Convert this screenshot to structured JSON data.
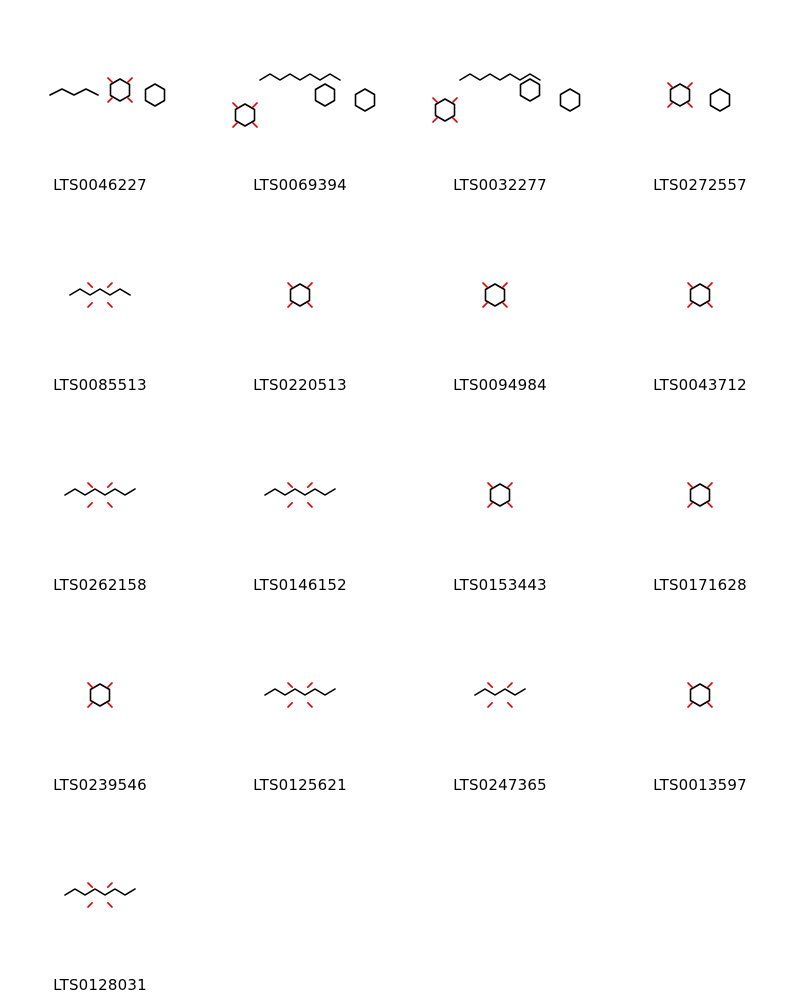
{
  "compounds": [
    {
      "id": "LTS0046227"
    },
    {
      "id": "LTS0069394"
    },
    {
      "id": "LTS0032277"
    },
    {
      "id": "LTS0272557"
    },
    {
      "id": "LTS0085513"
    },
    {
      "id": "LTS0220513"
    },
    {
      "id": "LTS0094984"
    },
    {
      "id": "LTS0043712"
    },
    {
      "id": "LTS0262158"
    },
    {
      "id": "LTS0146152"
    },
    {
      "id": "LTS0153443"
    },
    {
      "id": "LTS0171628"
    },
    {
      "id": "LTS0239546"
    },
    {
      "id": "LTS0125621"
    },
    {
      "id": "LTS0247365"
    },
    {
      "id": "LTS0013597"
    },
    {
      "id": "LTS0128031"
    }
  ]
}
